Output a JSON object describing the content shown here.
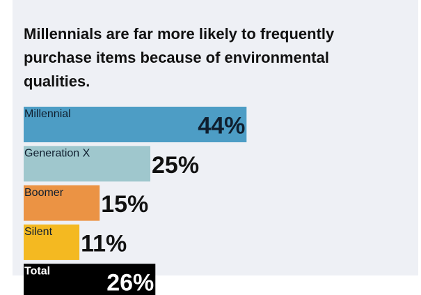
{
  "chart_data": {
    "type": "bar",
    "orientation": "horizontal",
    "title": "Millennials are far more likely to frequently purchase items because of environmental qualities.",
    "categories": [
      "Millennial",
      "Generation X",
      "Boomer",
      "Silent",
      "Total"
    ],
    "values": [
      44,
      25,
      15,
      11,
      26
    ],
    "value_labels": [
      "44%",
      "25%",
      "15%",
      "11%",
      "26%"
    ],
    "colors": [
      "#4d9dc5",
      "#9fc7cd",
      "#eb9344",
      "#f4b921",
      "#000000"
    ],
    "label_position": [
      "inside",
      "outside",
      "outside",
      "outside",
      "inside"
    ]
  }
}
